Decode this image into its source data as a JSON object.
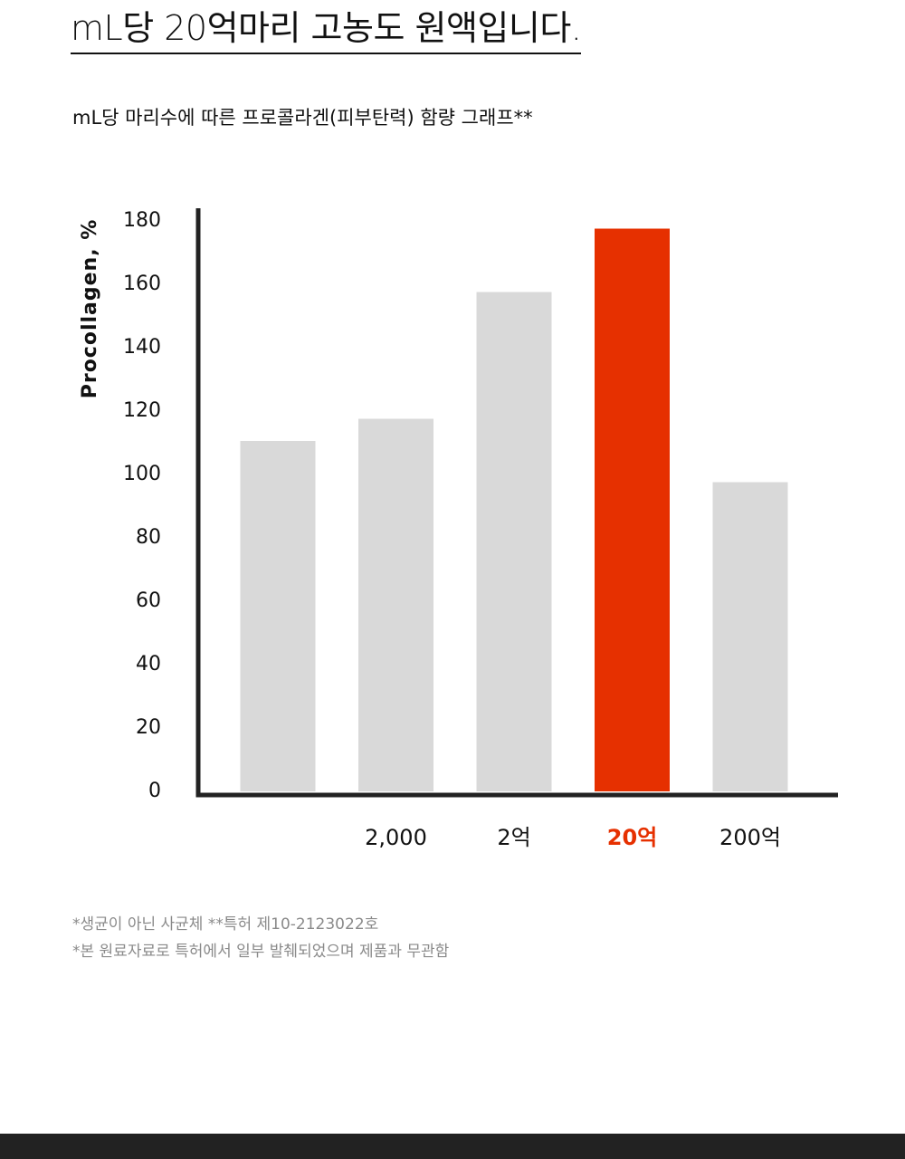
{
  "headline": "mL당 20억마리 고농도 원액입니다.",
  "chart_data": {
    "type": "bar",
    "title": "mL당 마리수에 따른 프로콜라겐(피부탄력) 함량 그래프**",
    "ylabel": "Procollagen, %",
    "ylim": [
      0,
      180
    ],
    "yticks": [
      0,
      20,
      40,
      60,
      80,
      100,
      120,
      140,
      160,
      180
    ],
    "categories": [
      "",
      "2,000",
      "2억",
      "20억",
      "200억"
    ],
    "values": [
      110,
      117,
      157,
      177,
      97
    ],
    "highlight_index": 3,
    "colors": {
      "bar": "#d9d9d9",
      "highlight": "#e63000",
      "axis": "#222222",
      "tick_text": "#111111"
    },
    "grid": false
  },
  "notes": [
    "*생균이 아닌 사균체 **특허 제10-2123022호",
    "*본 원료자료로 특허에서 일부 발췌되었으며 제품과 무관함"
  ]
}
